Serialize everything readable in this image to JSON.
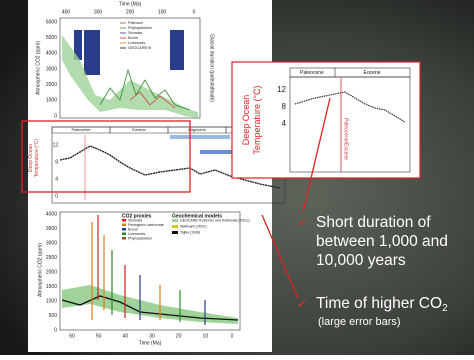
{
  "top_figure": {
    "x_axis_title": "Time (Ma)",
    "x_ticks": [
      "400",
      "300",
      "200",
      "100",
      "0"
    ],
    "y_axis_title": "Atmospheric CO2 (ppm)",
    "y_ticks": [
      "6000",
      "5000",
      "4000",
      "3000",
      "2000",
      "1000",
      "0"
    ],
    "right_axis_title": "Glacial duration (paleolatitude)",
    "legend": [
      "Paleosol",
      "Phytoplankton",
      "Stomata",
      "Boron",
      "Liverworts",
      "GEOCARB III"
    ]
  },
  "zoom_figure": {
    "epochs": [
      "Paleocene",
      "Eocene"
    ],
    "y_axis_title": [
      "Deep Ocean",
      "Temperature (°C)"
    ],
    "y_ticks": [
      "12",
      "8",
      "4"
    ],
    "annotation": "Paleocene/Eocene"
  },
  "middle_figure": {
    "epochs": [
      "Paleocene",
      "Eocene",
      "Oligocene",
      "Miocene"
    ],
    "y_axis_title": [
      "Deep Ocean",
      "Temperature (°C)"
    ],
    "y_ticks": [
      "12",
      "8",
      "4",
      "0"
    ]
  },
  "bottom_figure": {
    "y_axis_title": "Atmospheric CO2 (ppm)",
    "y_ticks": [
      "4000",
      "3500",
      "3000",
      "2500",
      "2000",
      "1500",
      "1000",
      "500",
      "0"
    ],
    "x_ticks": [
      "60",
      "50",
      "40",
      "30",
      "20",
      "10",
      "0"
    ],
    "x_axis_title": "Time (Ma)",
    "legend_left_title": "CO2 proxies",
    "legend_left": [
      "Stomata",
      "Pedogenic carbonate",
      "Boron",
      "Liverworts",
      "Phytoplankton"
    ],
    "legend_right_title": "Geochemical models",
    "legend_right": [
      "GEOCARB III (Berner and Kothavala (2001))",
      "Wallmann (2001)",
      "Tajika (1998)"
    ]
  },
  "bullets": [
    {
      "lines": [
        "Short duration of",
        "between 1,000 and",
        "10,000 years"
      ]
    },
    {
      "main": "Time of higher CO",
      "subscript": "2",
      "note": "(large error bars)"
    }
  ]
}
